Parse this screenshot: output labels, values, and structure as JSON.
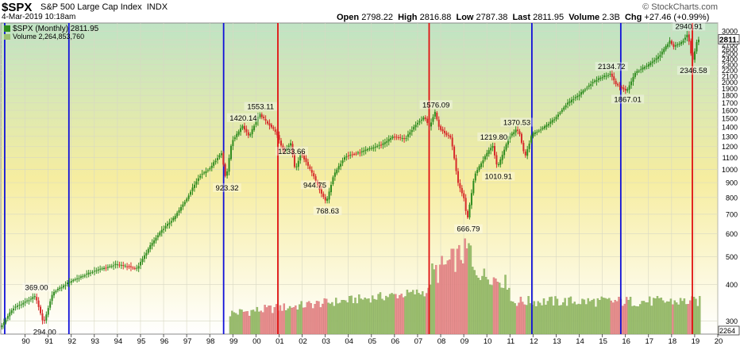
{
  "header": {
    "symbol": "$SPX",
    "name": "S&P 500 Large Cap Index",
    "exchange": "INDX",
    "date": "4-Mar-2019 10:18am",
    "open_label": "Open",
    "open": "2798.22",
    "high_label": "High",
    "high": "2816.88",
    "low_label": "Low",
    "low": "2787.38",
    "last_label": "Last",
    "last": "2811.95",
    "volume_label": "Volume",
    "volume": "2.3B",
    "chg_label": "Chg",
    "chg": "+27.46 (+0.99%)",
    "logo": "© StockCharts.com"
  },
  "legend": {
    "price": "$SPX (Monthly) 2811.95",
    "volume": "Volume 2,264,853,760"
  },
  "colors": {
    "up": "#2e8b1e",
    "down": "#d62a2a",
    "blue_line": "#1010d8",
    "red_line": "#e01010",
    "bg_top": "#bfe3c4",
    "bg_bottom": "#ffffff",
    "bg_mid": "#f6eda0"
  },
  "chart_data": {
    "type": "line",
    "scale": "log",
    "series_name": "$SPX (Monthly)",
    "ylim": [
      270,
      3200
    ],
    "y_ticks": [
      300,
      400,
      500,
      600,
      700,
      800,
      900,
      1000,
      1100,
      1200,
      1300,
      1400,
      1500,
      1600,
      1700,
      1800,
      1900,
      2000,
      2100,
      2200,
      2300,
      2400,
      2500,
      2600,
      2700,
      2800,
      3000
    ],
    "x_tick_labels": [
      "90",
      "91",
      "92",
      "93",
      "94",
      "95",
      "96",
      "97",
      "98",
      "99",
      "00",
      "01",
      "02",
      "03",
      "04",
      "05",
      "06",
      "07",
      "08",
      "09",
      "10",
      "11",
      "12",
      "13",
      "14",
      "15",
      "16",
      "17",
      "18",
      "19",
      "20"
    ],
    "last_value_label": "2811.",
    "volume_axis_label": "2264",
    "price_points": [
      [
        1989.0,
        285
      ],
      [
        1989.5,
        330
      ],
      [
        1990.5,
        365
      ],
      [
        1990.85,
        294
      ],
      [
        1991.25,
        375
      ],
      [
        1992.0,
        410
      ],
      [
        1993.0,
        445
      ],
      [
        1994.0,
        470
      ],
      [
        1994.9,
        455
      ],
      [
        1995.5,
        550
      ],
      [
        1996.0,
        620
      ],
      [
        1996.5,
        680
      ],
      [
        1997.0,
        780
      ],
      [
        1997.6,
        950
      ],
      [
        1998.0,
        1000
      ],
      [
        1998.55,
        1140
      ],
      [
        1998.75,
        923.32
      ],
      [
        1999.0,
        1250
      ],
      [
        1999.25,
        1330
      ],
      [
        1999.45,
        1420.14
      ],
      [
        1999.75,
        1300
      ],
      [
        2000.2,
        1553.11
      ],
      [
        2000.5,
        1460
      ],
      [
        2000.9,
        1350
      ],
      [
        2001.25,
        1150
      ],
      [
        2001.55,
        1233.66
      ],
      [
        2001.75,
        990
      ],
      [
        2002.0,
        1140
      ],
      [
        2002.55,
        944.75
      ],
      [
        2002.8,
        850
      ],
      [
        2003.1,
        768.63
      ],
      [
        2003.4,
        950
      ],
      [
        2003.9,
        1110
      ],
      [
        2004.5,
        1140
      ],
      [
        2005.0,
        1180
      ],
      [
        2005.5,
        1220
      ],
      [
        2006.0,
        1300
      ],
      [
        2006.5,
        1270
      ],
      [
        2007.0,
        1440
      ],
      [
        2007.35,
        1520
      ],
      [
        2007.55,
        1400
      ],
      [
        2007.8,
        1576.09
      ],
      [
        2008.0,
        1380
      ],
      [
        2008.5,
        1280
      ],
      [
        2008.8,
        900
      ],
      [
        2009.05,
        800
      ],
      [
        2009.2,
        666.79
      ],
      [
        2009.5,
        950
      ],
      [
        2010.0,
        1120
      ],
      [
        2010.3,
        1210
      ],
      [
        2010.5,
        1010.91
      ],
      [
        2011.0,
        1290
      ],
      [
        2011.3,
        1370.53
      ],
      [
        2011.45,
        1340
      ],
      [
        2011.7,
        1100
      ],
      [
        2012.0,
        1320
      ],
      [
        2012.6,
        1410
      ],
      [
        2013.0,
        1500
      ],
      [
        2013.5,
        1680
      ],
      [
        2014.0,
        1800
      ],
      [
        2014.6,
        1990
      ],
      [
        2015.0,
        2080
      ],
      [
        2015.4,
        2134.72
      ],
      [
        2015.65,
        1960
      ],
      [
        2016.1,
        1867.01
      ],
      [
        2016.5,
        2170
      ],
      [
        2017.0,
        2280
      ],
      [
        2017.5,
        2450
      ],
      [
        2018.0,
        2800
      ],
      [
        2018.1,
        2640
      ],
      [
        2018.5,
        2750
      ],
      [
        2018.75,
        2940.91
      ],
      [
        2018.95,
        2346.58
      ],
      [
        2019.17,
        2811.95
      ]
    ],
    "annotations": [
      {
        "x": 1990.5,
        "y": 369.0,
        "text": "369.00",
        "pos": "above"
      },
      {
        "x": 1990.85,
        "y": 294,
        "text": "294.00",
        "pos": "below"
      },
      {
        "x": 1998.75,
        "y": 923.32,
        "text": "923.32",
        "pos": "below"
      },
      {
        "x": 1999.45,
        "y": 1420.14,
        "text": "1420.14",
        "pos": "above"
      },
      {
        "x": 2000.2,
        "y": 1553.11,
        "text": "1553.11",
        "pos": "above"
      },
      {
        "x": 2001.55,
        "y": 1233.66,
        "text": "1233.66",
        "pos": "below"
      },
      {
        "x": 2002.55,
        "y": 944.75,
        "text": "944.75",
        "pos": "below"
      },
      {
        "x": 2003.1,
        "y": 768.63,
        "text": "768.63",
        "pos": "below"
      },
      {
        "x": 2007.8,
        "y": 1576.09,
        "text": "1576.09",
        "pos": "above"
      },
      {
        "x": 2009.2,
        "y": 666.79,
        "text": "666.79",
        "pos": "below"
      },
      {
        "x": 2010.3,
        "y": 1219.8,
        "text": "1219.80",
        "pos": "above"
      },
      {
        "x": 2010.5,
        "y": 1010.91,
        "text": "1010.91",
        "pos": "below"
      },
      {
        "x": 2011.3,
        "y": 1370.53,
        "text": "1370.53",
        "pos": "above"
      },
      {
        "x": 2015.4,
        "y": 2134.72,
        "text": "2134.72",
        "pos": "above"
      },
      {
        "x": 2016.1,
        "y": 1867.01,
        "text": "1867.01",
        "pos": "below"
      },
      {
        "x": 2018.75,
        "y": 2940.91,
        "text": "2940.91",
        "pos": "above"
      },
      {
        "x": 2018.95,
        "y": 2346.58,
        "text": "2346.58",
        "pos": "below"
      }
    ],
    "vertical_lines": [
      {
        "x": 1989.12,
        "color": "blue"
      },
      {
        "x": 1991.9,
        "color": "blue"
      },
      {
        "x": 1998.6,
        "color": "blue"
      },
      {
        "x": 2000.95,
        "color": "red"
      },
      {
        "x": 2007.5,
        "color": "red"
      },
      {
        "x": 2011.95,
        "color": "blue"
      },
      {
        "x": 2015.8,
        "color": "blue"
      },
      {
        "x": 2018.9,
        "color": "red"
      }
    ],
    "volume_start": 1998.85
  }
}
